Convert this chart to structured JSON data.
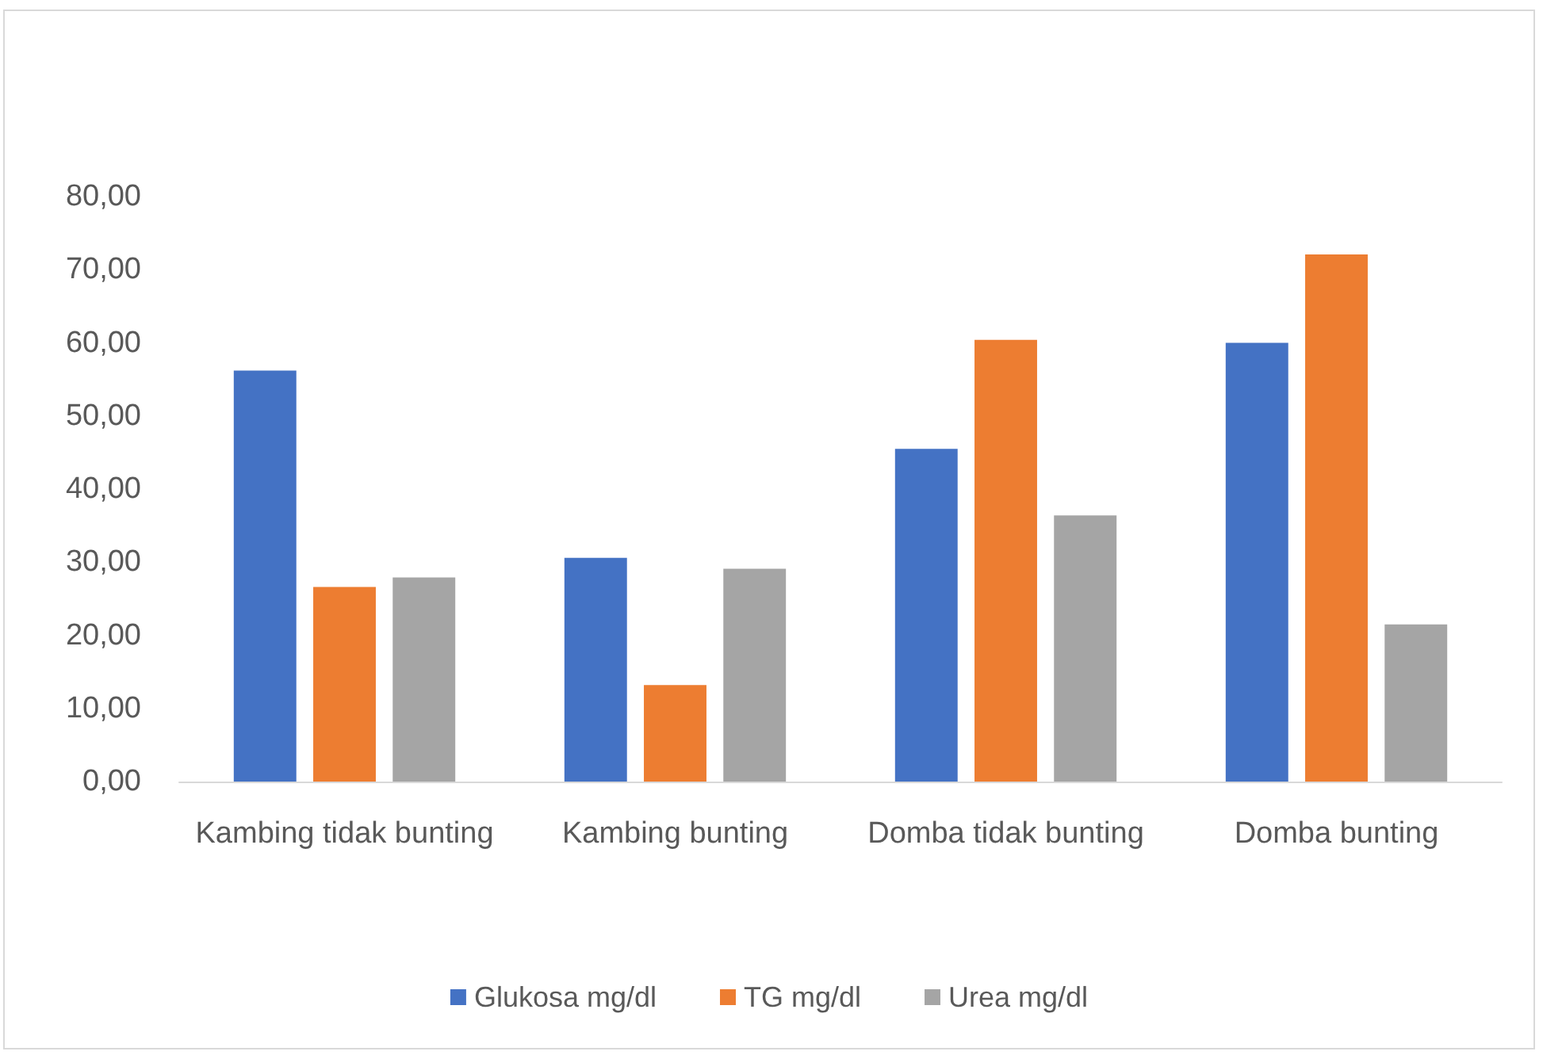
{
  "chart_data": {
    "type": "bar",
    "categories": [
      "Kambing tidak bunting",
      "Kambing bunting",
      "Domba tidak bunting",
      "Domba bunting"
    ],
    "series": [
      {
        "name": "Glukosa mg/dl",
        "color": "#4472c4",
        "values": [
          56.2,
          30.6,
          45.5,
          60.0
        ]
      },
      {
        "name": "TG mg/dl",
        "color": "#ed7d31",
        "values": [
          26.6,
          13.2,
          60.4,
          72.1
        ]
      },
      {
        "name": "Urea mg/dl",
        "color": "#a5a5a5",
        "values": [
          27.9,
          29.1,
          36.4,
          21.5
        ]
      }
    ],
    "ylim": [
      0,
      80
    ],
    "yticks": [
      {
        "value": 0,
        "label": "0,00"
      },
      {
        "value": 10,
        "label": "10,00"
      },
      {
        "value": 20,
        "label": "20,00"
      },
      {
        "value": 30,
        "label": "30,00"
      },
      {
        "value": 40,
        "label": "40,00"
      },
      {
        "value": 50,
        "label": "50,00"
      },
      {
        "value": 60,
        "label": "60,00"
      },
      {
        "value": 70,
        "label": "70,00"
      },
      {
        "value": 80,
        "label": "80,00"
      }
    ],
    "grid": false,
    "legend": "bottom"
  }
}
